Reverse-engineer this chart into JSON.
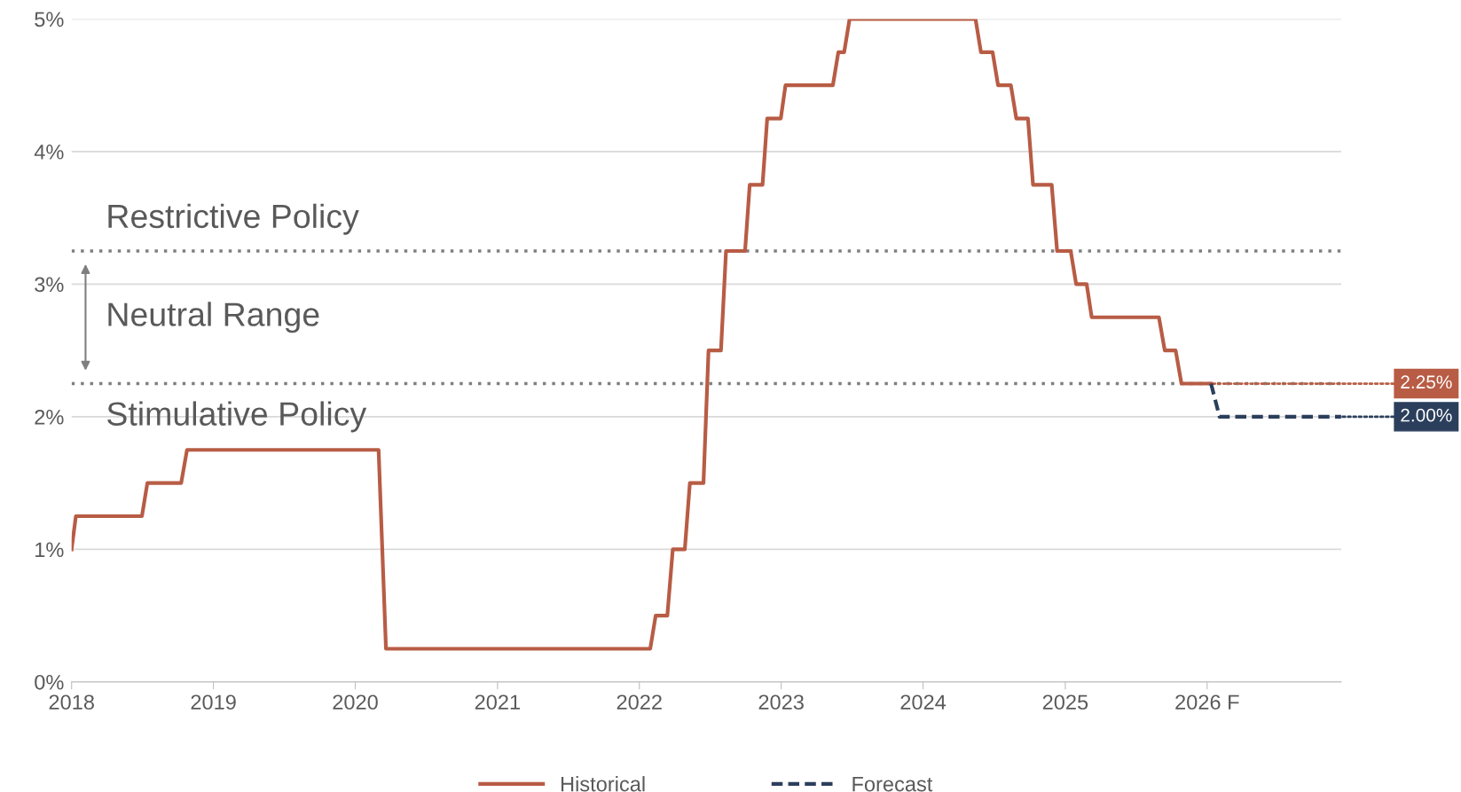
{
  "chart_data": {
    "type": "line",
    "x": [
      "2018-01-01",
      "2018-01-12",
      "2018-07-01",
      "2018-07-15",
      "2018-10-10",
      "2018-10-25",
      "2020-03-01",
      "2020-03-20",
      "2022-01-29",
      "2022-02-12",
      "2022-03-14",
      "2022-03-28",
      "2022-04-28",
      "2022-05-11",
      "2022-06-15",
      "2022-06-28",
      "2022-07-30",
      "2022-08-12",
      "2022-09-30",
      "2022-10-12",
      "2022-11-14",
      "2022-11-26",
      "2022-12-31",
      "2023-01-12",
      "2023-05-14",
      "2023-05-28",
      "2023-06-12",
      "2023-06-26",
      "2024-05-15",
      "2024-05-29",
      "2024-06-28",
      "2024-07-12",
      "2024-08-14",
      "2024-08-28",
      "2024-09-27",
      "2024-10-10",
      "2024-11-27",
      "2024-12-11",
      "2025-01-15",
      "2025-01-29",
      "2025-02-25",
      "2025-03-10",
      "2025-08-30",
      "2025-09-14",
      "2025-10-12",
      "2025-10-27",
      "2026-01-11",
      "2026-02-02",
      "2026-12-12"
    ],
    "series": [
      {
        "name": "Historical",
        "color": "#b85c45",
        "line_style": "solid",
        "values": [
          1.0,
          1.25,
          1.25,
          1.5,
          1.5,
          1.75,
          1.75,
          0.25,
          0.25,
          0.5,
          0.5,
          1.0,
          1.0,
          1.5,
          1.5,
          2.5,
          2.5,
          3.25,
          3.25,
          3.75,
          3.75,
          4.25,
          4.25,
          4.5,
          4.5,
          4.75,
          4.75,
          5.0,
          5.0,
          4.75,
          4.75,
          4.5,
          4.5,
          4.25,
          4.25,
          3.75,
          3.75,
          3.25,
          3.25,
          3.0,
          3.0,
          2.75,
          2.75,
          2.5,
          2.5,
          2.25,
          2.25,
          null,
          null
        ],
        "value_labels": [
          null,
          null,
          null,
          null,
          null,
          null,
          null,
          null,
          null,
          null,
          null,
          null,
          null,
          null,
          null,
          null,
          null,
          null,
          null,
          null,
          null,
          null,
          null,
          null,
          null,
          null,
          null,
          null,
          null,
          null,
          null,
          null,
          null,
          null,
          null,
          null,
          null,
          null,
          null,
          null,
          null,
          null,
          null,
          null,
          null,
          null,
          "2.25%",
          null,
          null
        ]
      },
      {
        "name": "Forecast",
        "color": "#2b3f5c",
        "line_style": "dashed",
        "values": [
          null,
          null,
          null,
          null,
          null,
          null,
          null,
          null,
          null,
          null,
          null,
          null,
          null,
          null,
          null,
          null,
          null,
          null,
          null,
          null,
          null,
          null,
          null,
          null,
          null,
          null,
          null,
          null,
          null,
          null,
          null,
          null,
          null,
          null,
          null,
          null,
          null,
          null,
          null,
          null,
          null,
          null,
          null,
          null,
          null,
          null,
          2.25,
          2.0,
          2.0
        ],
        "value_labels": [
          null,
          null,
          null,
          null,
          null,
          null,
          null,
          null,
          null,
          null,
          null,
          null,
          null,
          null,
          null,
          null,
          null,
          null,
          null,
          null,
          null,
          null,
          null,
          null,
          null,
          null,
          null,
          null,
          null,
          null,
          null,
          null,
          null,
          null,
          null,
          null,
          null,
          null,
          null,
          null,
          null,
          null,
          null,
          null,
          null,
          null,
          null,
          null,
          "2.00%"
        ]
      }
    ],
    "xlim": [
      "2018-01-01",
      "2026-12-12"
    ],
    "xticks": [
      {
        "value": "2018-01-01",
        "label": "2018"
      },
      {
        "value": "2019-01-01",
        "label": "2019"
      },
      {
        "value": "2020-01-01",
        "label": "2020"
      },
      {
        "value": "2021-01-01",
        "label": "2021"
      },
      {
        "value": "2022-01-01",
        "label": "2022"
      },
      {
        "value": "2023-01-01",
        "label": "2023"
      },
      {
        "value": "2024-01-01",
        "label": "2024"
      },
      {
        "value": "2025-01-01",
        "label": "2025"
      },
      {
        "value": "2026-01-01",
        "label": "2026 F"
      }
    ],
    "ylim": [
      0,
      5
    ],
    "yticks": [
      {
        "value": 0,
        "label": "0%"
      },
      {
        "value": 1,
        "label": "1%"
      },
      {
        "value": 2,
        "label": "2%"
      },
      {
        "value": 3,
        "label": "3%"
      },
      {
        "value": 4,
        "label": "4%"
      },
      {
        "value": 5,
        "label": "5%"
      }
    ],
    "ref_lines": [
      {
        "axis": "y",
        "value": 3.25,
        "color": "#7f7f7f",
        "line_style": "dotted"
      },
      {
        "axis": "y",
        "value": 2.25,
        "color": "#7f7f7f",
        "line_style": "dotted"
      }
    ],
    "annotations": [
      "Restrictive Policy",
      "Neutral Range",
      "Stimulative Policy"
    ],
    "grid": "y",
    "legend": "bottom"
  }
}
